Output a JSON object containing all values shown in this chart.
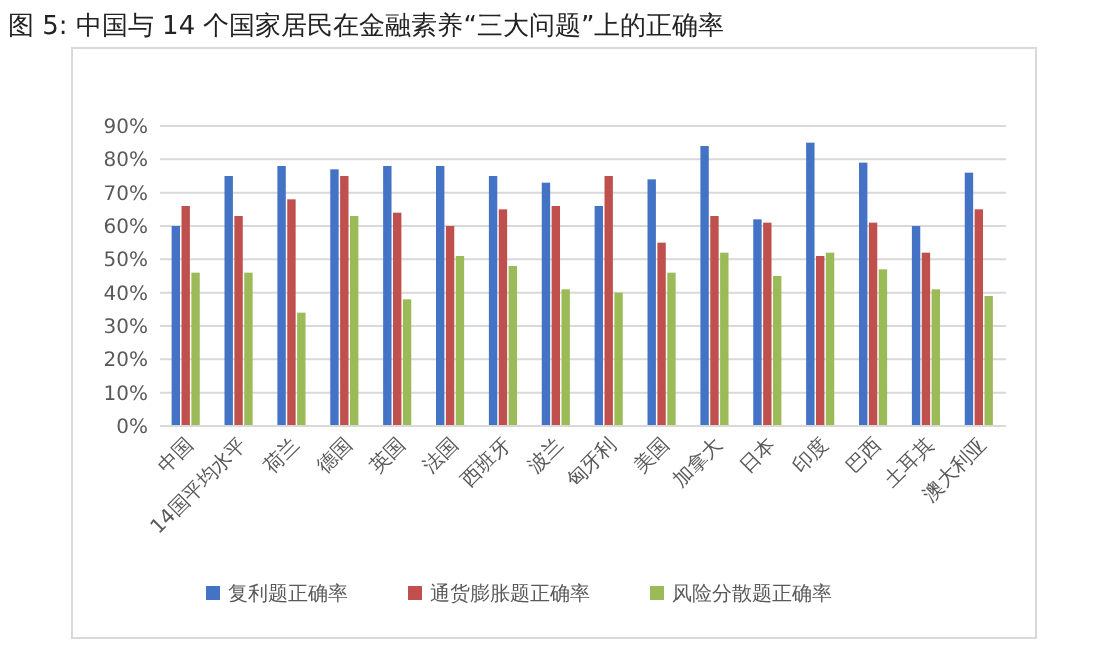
{
  "chart_data": {
    "type": "bar",
    "title": "图 5:   中国与 14 个国家居民在金融素养“三大问题”上的正确率",
    "categories": [
      "中国",
      "14国平均水平",
      "荷兰",
      "德国",
      "英国",
      "法国",
      "西班牙",
      "波兰",
      "匈牙利",
      "美国",
      "加拿大",
      "日本",
      "印度",
      "巴西",
      "土耳其",
      "澳大利亚"
    ],
    "series": [
      {
        "name": "复利题正确率",
        "color": "#4472c4",
        "values": [
          60,
          75,
          78,
          77,
          78,
          78,
          75,
          73,
          66,
          74,
          84,
          62,
          85,
          79,
          60,
          76
        ]
      },
      {
        "name": "通货膨胀题正确率",
        "color": "#c0504d",
        "values": [
          66,
          63,
          68,
          75,
          64,
          60,
          65,
          66,
          75,
          55,
          63,
          61,
          51,
          61,
          52,
          65
        ]
      },
      {
        "name": "风险分散题正确率",
        "color": "#9bbb59",
        "values": [
          46,
          46,
          34,
          63,
          38,
          51,
          48,
          41,
          40,
          46,
          52,
          45,
          52,
          47,
          41,
          39
        ]
      }
    ],
    "ylim": [
      0,
      90
    ],
    "yticks": [
      {
        "value": 0,
        "label": "0%"
      },
      {
        "value": 10,
        "label": "10%"
      },
      {
        "value": 20,
        "label": "20%"
      },
      {
        "value": 30,
        "label": "30%"
      },
      {
        "value": 40,
        "label": "40%"
      },
      {
        "value": 50,
        "label": "50%"
      },
      {
        "value": 60,
        "label": "60%"
      },
      {
        "value": 70,
        "label": "70%"
      },
      {
        "value": 80,
        "label": "80%"
      },
      {
        "value": 90,
        "label": "90%"
      }
    ],
    "grid": "y",
    "legend": "bottom"
  }
}
